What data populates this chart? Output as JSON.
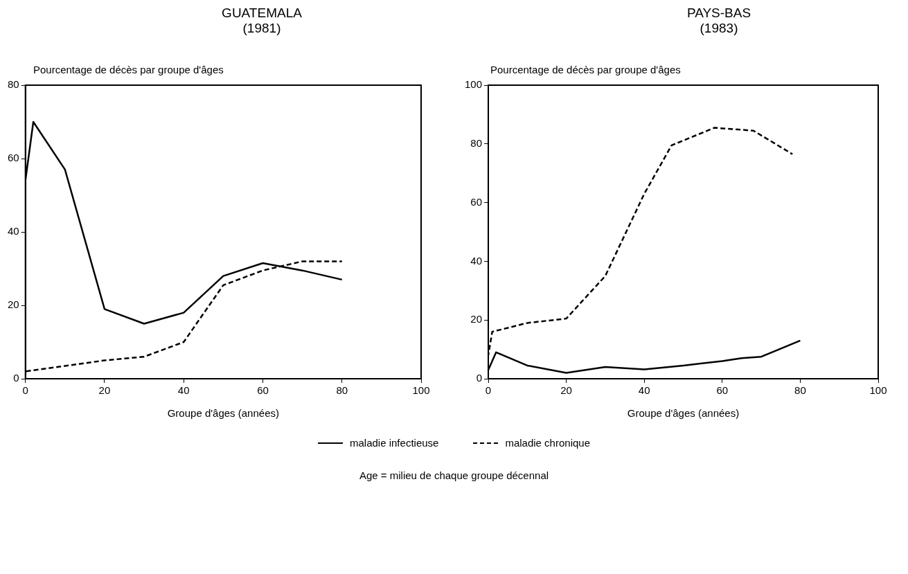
{
  "chart_data": [
    {
      "type": "line",
      "title": "GUATEMALA",
      "subtitle": "(1981)",
      "ylabel": "Pourcentage de décès par groupe d'âges",
      "xlabel": "Groupe d'âges (années)",
      "xlim": [
        0,
        100
      ],
      "xticks": [
        0,
        20,
        40,
        60,
        80,
        100
      ],
      "ylim": [
        0,
        80
      ],
      "yticks": [
        0,
        20,
        40,
        60,
        80
      ],
      "legend": "bottom",
      "annotations": [
        "Age = milieu de chaque groupe décennal"
      ],
      "series": [
        {
          "name": "maladie infectieuse",
          "color": "#000000",
          "line_style": "solid",
          "x": [
            0,
            2,
            10,
            20,
            30,
            40,
            50,
            60,
            70,
            80
          ],
          "values": [
            54,
            70,
            57,
            19,
            15,
            18,
            28,
            31.5,
            29.5,
            27
          ]
        },
        {
          "name": "maladie chronique",
          "color": "#000000",
          "line_style": "dashed",
          "x": [
            0,
            10,
            20,
            30,
            40,
            50,
            60,
            70,
            80
          ],
          "values": [
            2,
            3.5,
            5,
            6,
            10,
            25.5,
            29.5,
            32,
            32
          ]
        }
      ]
    },
    {
      "type": "line",
      "title": "PAYS-BAS",
      "subtitle": "(1983)",
      "ylabel": "Pourcentage de décès par groupe d'âges",
      "xlabel": "Groupe d'âges (années)",
      "xlim": [
        0,
        100
      ],
      "xticks": [
        0,
        20,
        40,
        60,
        80,
        100
      ],
      "ylim": [
        0,
        100
      ],
      "yticks": [
        0,
        20,
        40,
        60,
        80,
        100
      ],
      "series": [
        {
          "color": "#000000",
          "line_style": "solid",
          "x": [
            0,
            2,
            10,
            20,
            30,
            40,
            50,
            60,
            65,
            70,
            80
          ],
          "values": [
            3,
            9,
            4.5,
            2,
            4,
            3.2,
            4.5,
            6,
            7,
            7.5,
            13
          ]
        },
        {
          "color": "#000000",
          "line_style": "dashed",
          "x": [
            0,
            1,
            10,
            20,
            30,
            40,
            47,
            58,
            68,
            78
          ],
          "values": [
            8,
            16,
            19,
            20.5,
            35,
            63,
            79.5,
            85.5,
            84.5,
            76.5
          ]
        }
      ]
    }
  ]
}
